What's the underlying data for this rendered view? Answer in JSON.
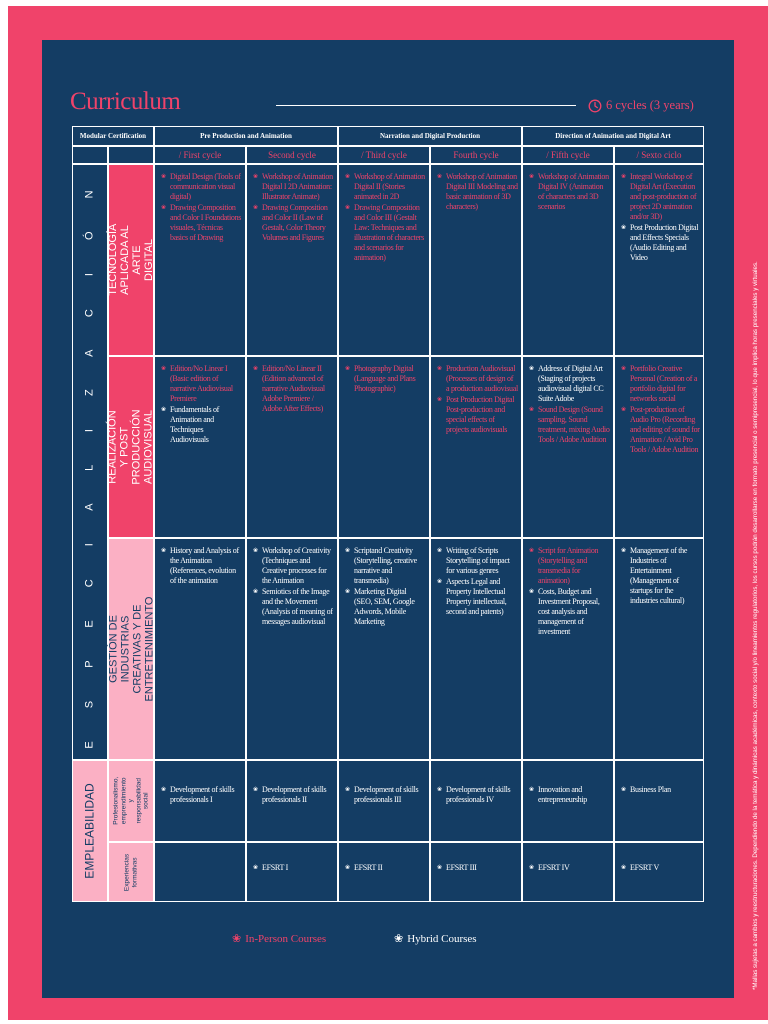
{
  "title": "Curriculum",
  "cycles_summary": "6 cycles (3 years)",
  "side_note": "*Mallas sujetas a cambios y reestructuraciones. Dependiendo de la temática y dinámicas académicas, contexto social y/o lineamientos regulatorios, los cursos podrán desarrollarse en formato presencial o semipresencial, lo que implica horas presenciales y virtuales.",
  "header": {
    "modular": "Modular Certification",
    "groups": [
      "Pre Production and Animation",
      "Narration and Digital Production",
      "Direction of Animation and Digital Art"
    ]
  },
  "cycles": [
    "/ First cycle",
    "Second cycle",
    "/ Third cycle",
    "Fourth cycle",
    "/ Fifth cycle",
    "/ Sexto ciclo"
  ],
  "sections": {
    "especializacion": "E S P E C I A L I Z A C I Ó N",
    "empleabilidad": "EMPLEABILIDAD"
  },
  "bands": [
    "TECNOLOGÍA APLICADA AL ARTE DIGITAL",
    "REALIZACIÓN Y POST PRODUCCIÓN AUDIOVISUAL",
    "GESTIÓN DE INDUSTRIAS CREATIVAS Y DE ENTRETENIMIENTO"
  ],
  "sub_bands": [
    "Profesionalismo, emprendimiento y responsabilidad social",
    "Experiencias formativas"
  ],
  "rows": [
    [
      [
        {
          "t": "Digital Design (Tools of communication visual digital)",
          "c": "pink"
        },
        {
          "t": "Drawing Composition and Color I Foundations visuales, Técnicas basics of Drawing",
          "c": "pink"
        }
      ],
      [
        {
          "t": "Workshop of Animation Digital I 2D Animation: Illustrator Animate)",
          "c": "pink"
        },
        {
          "t": "Drawing Composition and Color II (Law of Gestalt, Color Theory Volumes and Figures",
          "c": "pink"
        }
      ],
      [
        {
          "t": "Workshop of Animation Digital II (Stories animated in 2D",
          "c": "pink"
        },
        {
          "t": "Drawing Composition and Color III (Gestalt Law: Techniques and illustration of characters and scenarios for animation)",
          "c": "pink"
        }
      ],
      [
        {
          "t": "Workshop of Animation Digital III Modeling and basic animation of 3D characters)",
          "c": "pink"
        }
      ],
      [
        {
          "t": "Workshop of Animation Digital IV (Animation of characters and 3D scenarios",
          "c": "pink"
        }
      ],
      [
        {
          "t": "Integral Workshop of Digital Art (Execution and post-production of project 2D animation and/or 3D)",
          "c": "pink"
        },
        {
          "t": "Post Production Digital and Effects Specials (Audio Editing and Video",
          "c": "white"
        }
      ]
    ],
    [
      [
        {
          "t": "Edition/No Linear I (Basic edition of narrative Audiovisual Premiere",
          "c": "pink"
        },
        {
          "t": "Fundamentals of Animation and Techniques Audiovisuals",
          "c": "white"
        }
      ],
      [
        {
          "t": "Edition/No Linear II (Edition advanced of narrative Audiovisual Adobe Premiere / Adobe After Effects)",
          "c": "pink"
        }
      ],
      [
        {
          "t": "Photography Digital (Language and Plans Photographic)",
          "c": "pink"
        }
      ],
      [
        {
          "t": "Production Audiovisual (Processes of design of a production audiovisual",
          "c": "pink"
        },
        {
          "t": "Post Production Digital Post-production and special effects of projects audiovisuals",
          "c": "pink"
        }
      ],
      [
        {
          "t": "Address of Digital Art (Staging of projects audiovisual digital CC Suite Adobe",
          "c": "white"
        },
        {
          "t": "Sound Design (Sound sampling, Sound treatment, mixing Audio Tools / Adobe Audition",
          "c": "pink"
        }
      ],
      [
        {
          "t": "Portfolio Creative Personal (Creation of a portfolio digital for networks social",
          "c": "pink"
        },
        {
          "t": "Post-production of Audio Pro (Recording and editing of sound for Animation / Avid Pro Tools / Adobe Audition",
          "c": "pink"
        }
      ]
    ],
    [
      [
        {
          "t": "History and Analysis of the Animation (References, evolution of the animation",
          "c": "white"
        }
      ],
      [
        {
          "t": "Workshop of Creativity (Techniques and Creative processes for the Animation",
          "c": "white"
        },
        {
          "t": "Semiotics of the Image and the Movement (Analysis of meaning of messages audiovisual",
          "c": "white"
        }
      ],
      [
        {
          "t": "Scriptand Creativity (Storytelling, creative narrative and transmedia)",
          "c": "white"
        },
        {
          "t": "Marketing Digital (SEO, SEM, Google Adwords, Mobile Marketing",
          "c": "white"
        }
      ],
      [
        {
          "t": "Writing of Scripts Storytelling of impact for various genres",
          "c": "white"
        },
        {
          "t": "Aspects Legal and Property Intellectual Property intellectual, second and patents)",
          "c": "white"
        }
      ],
      [
        {
          "t": "Script for Animation (Storytelling and transmedia for animation)",
          "c": "pink"
        },
        {
          "t": "Costs, Budget and Investment Proposal, cost analysis and management of investment",
          "c": "white"
        }
      ],
      [
        {
          "t": "Management of the Industries of Entertainment (Management of startups for the industries cultural)",
          "c": "white"
        }
      ]
    ],
    [
      [
        {
          "t": "Development of skills professionals I",
          "c": "white"
        }
      ],
      [
        {
          "t": "Development of skills professionals II",
          "c": "white"
        }
      ],
      [
        {
          "t": "Development of skills professionals III",
          "c": "white"
        }
      ],
      [
        {
          "t": "Development of skills professionals IV",
          "c": "white"
        }
      ],
      [
        {
          "t": "Innovation and entrepreneurship",
          "c": "white"
        }
      ],
      [
        {
          "t": "Business Plan",
          "c": "white"
        }
      ]
    ],
    [
      [],
      [
        {
          "t": "EFSRT I",
          "c": "white"
        }
      ],
      [
        {
          "t": "EFSRT II",
          "c": "white"
        }
      ],
      [
        {
          "t": "EFSRT III",
          "c": "white"
        }
      ],
      [
        {
          "t": "EFSRT IV",
          "c": "white"
        }
      ],
      [
        {
          "t": "EFSRT V",
          "c": "white"
        }
      ]
    ]
  ],
  "legend": {
    "in_person": "In-Person Courses",
    "hybrid": "Hybrid Courses"
  },
  "colors": {
    "accent": "#f0436a",
    "panel": "#143d64",
    "light_pink": "#fbb0c4"
  }
}
